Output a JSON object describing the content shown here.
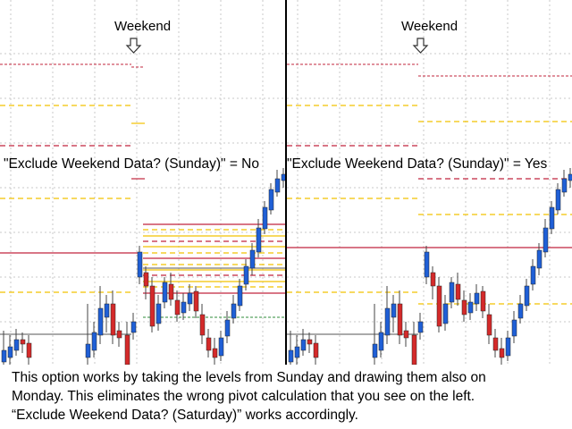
{
  "panels": {
    "left": {
      "caption": "Weekend",
      "setting_label": "\"Exclude Weekend Data? (Sunday)\" = No"
    },
    "right": {
      "caption": "Weekend",
      "setting_label": "\"Exclude Weekend Data? (Sunday)\" = Yes"
    }
  },
  "arrow_icon": "down-arrow-icon",
  "description": {
    "lines": [
      "This option works by taking the levels from Sunday and drawing them also on",
      "Monday. This eliminates the wrong pivot calculation that you see on the left.",
      "“Exclude Weekend Data? (Saturday)” works accordingly."
    ]
  },
  "colors": {
    "bull_candle": "#1f5fd6",
    "bear_candle": "#d42a2a",
    "pivot_red": "#c0243d",
    "level_yellow": "#f2c200",
    "level_green": "#2e8b3a",
    "grid": "#c8c8c8"
  }
}
